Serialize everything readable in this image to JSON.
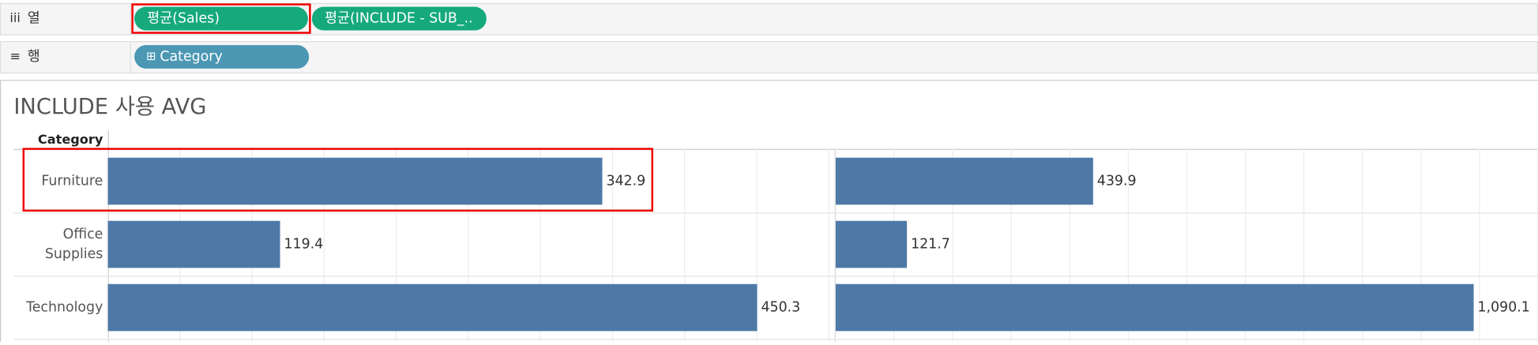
{
  "shelves": {
    "columns": {
      "label": "열",
      "pills": [
        "평균(Sales)",
        "평균(INCLUDE - SUB_.."
      ]
    },
    "rows": {
      "label": "행",
      "pills": [
        "Category"
      ]
    }
  },
  "sheet": {
    "title": "INCLUDE 사용 AVG",
    "row_header": "Category"
  },
  "chart_data": [
    {
      "type": "bar",
      "orientation": "horizontal",
      "categories": [
        "Furniture",
        "Office Supplies",
        "Technology"
      ],
      "values": [
        342.9,
        119.4,
        450.3
      ],
      "color": "#4e79a7",
      "xlim": [
        0,
        500
      ],
      "xticks": [
        0,
        50,
        100,
        150,
        200,
        250,
        300,
        350,
        400,
        450,
        500
      ],
      "grid": true,
      "tick_labels": false
    },
    {
      "type": "bar",
      "orientation": "horizontal",
      "values": [
        439.9,
        121.7,
        1090.1
      ],
      "value_labels": [
        "439.9",
        "121.7",
        "1,090.1"
      ],
      "color": "#4e79a7",
      "xlim": [
        0,
        1200
      ],
      "xticks": [
        0,
        100,
        200,
        300,
        400,
        500,
        600,
        700,
        800,
        900,
        1000,
        1100,
        1200
      ],
      "grid": true,
      "tick_labels": false
    }
  ]
}
